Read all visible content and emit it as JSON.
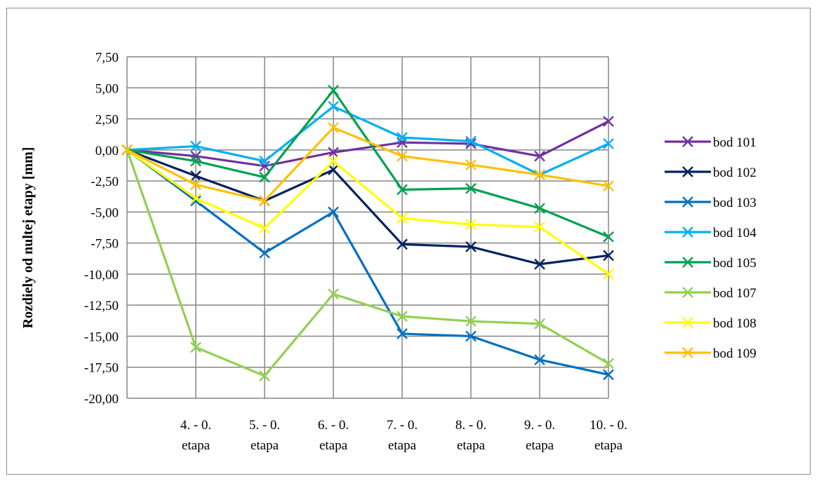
{
  "chart_data": {
    "type": "line",
    "title": "",
    "xlabel": "",
    "ylabel": "Rozdiely od nultej etapy [mm]",
    "ylim": [
      -20,
      7.5
    ],
    "ytick_step": 2.5,
    "ytick_labels": [
      "7,50",
      "5,00",
      "2,50",
      "0,00",
      "-2,50",
      "-5,00",
      "-7,50",
      "-10,00",
      "-12,50",
      "-15,00",
      "-17,50",
      "-20,00"
    ],
    "grid": true,
    "legend_position": "right",
    "categories": [
      "",
      "4. - 0. etapa",
      "5. - 0. etapa",
      "6. - 0. etapa",
      "7. - 0. etapa",
      "8. - 0. etapa",
      "9. - 0. etapa",
      "10. - 0. etapa"
    ],
    "series": [
      {
        "name": "bod 101",
        "color": "#7030a0",
        "values": [
          0,
          -0.5,
          -1.3,
          -0.2,
          0.6,
          0.5,
          -0.5,
          2.3
        ]
      },
      {
        "name": "bod 102",
        "color": "#002060",
        "values": [
          0,
          -2.1,
          -4.1,
          -1.6,
          -7.6,
          -7.8,
          -9.2,
          -8.5
        ]
      },
      {
        "name": "bod 103",
        "color": "#0070c0",
        "values": [
          0,
          -4.1,
          -8.3,
          -5.0,
          -14.8,
          -15.0,
          -16.9,
          -18.1
        ]
      },
      {
        "name": "bod 104",
        "color": "#00b0f0",
        "values": [
          0,
          0.3,
          -0.9,
          3.5,
          1.0,
          0.7,
          -2.0,
          0.5
        ]
      },
      {
        "name": "bod 105",
        "color": "#00a050",
        "values": [
          0,
          -0.9,
          -2.2,
          4.8,
          -3.2,
          -3.1,
          -4.7,
          -7.0
        ]
      },
      {
        "name": "bod 107",
        "color": "#92d050",
        "values": [
          0,
          -15.9,
          -18.2,
          -11.6,
          -13.4,
          -13.8,
          -14.0,
          -17.2
        ]
      },
      {
        "name": "bod 108",
        "color": "#ffff00",
        "values": [
          0,
          -3.9,
          -6.3,
          -0.9,
          -5.5,
          -6.0,
          -6.2,
          -10.0
        ]
      },
      {
        "name": "bod 109",
        "color": "#ffc000",
        "values": [
          0,
          -2.8,
          -4.1,
          1.8,
          -0.5,
          -1.2,
          -2.0,
          -2.9
        ]
      }
    ]
  }
}
